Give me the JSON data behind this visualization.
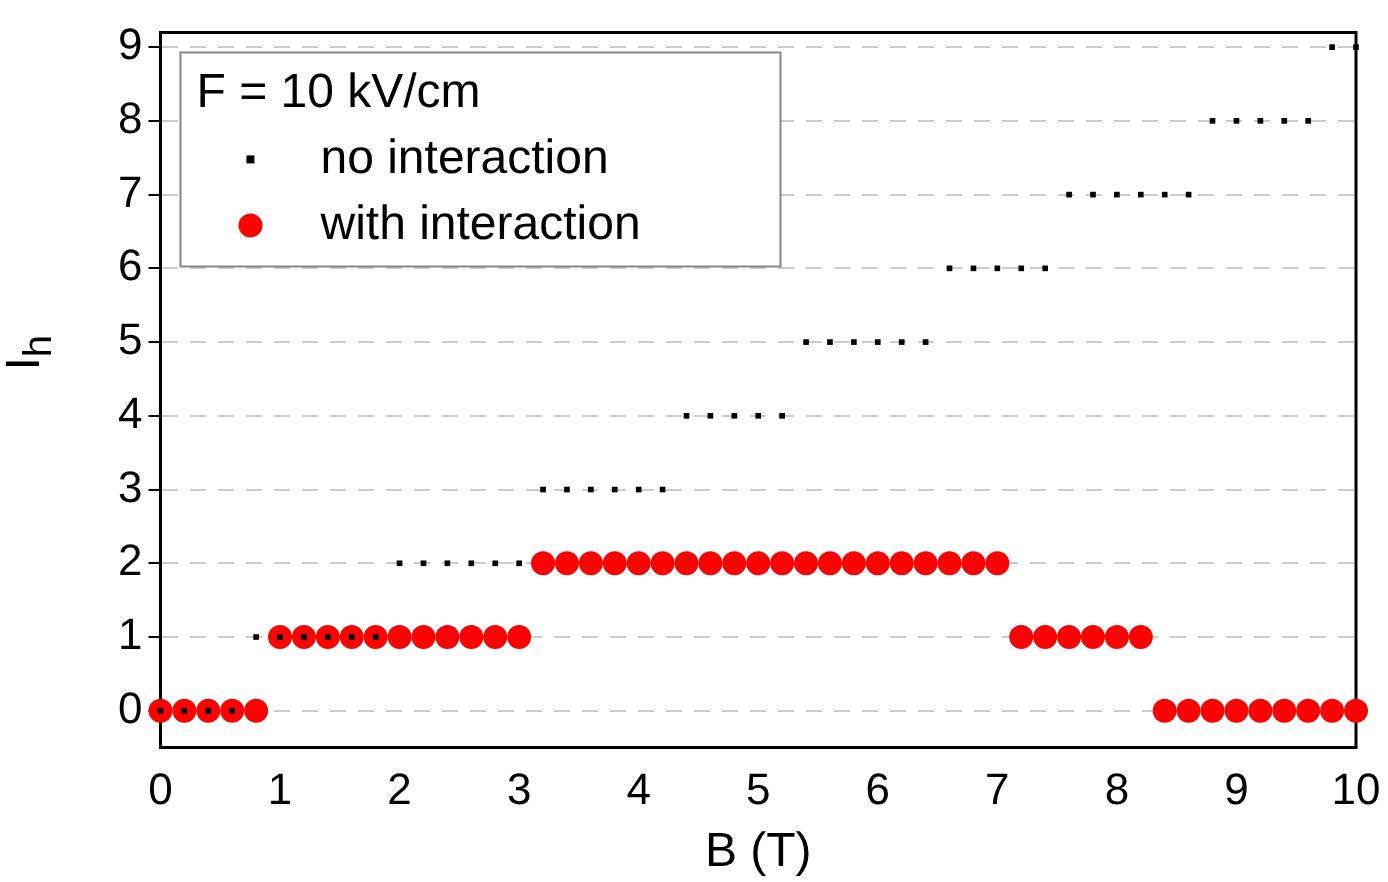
{
  "chart_data": {
    "type": "scatter",
    "xlabel": "B (T)",
    "ylabel": "I$_{h}$",
    "legend_title": "F = 10 kV/cm",
    "legend": "top left",
    "grid": "y",
    "xlim": [
      0,
      10
    ],
    "xticks": [
      0,
      1,
      2,
      3,
      4,
      5,
      6,
      7,
      8,
      9,
      10
    ],
    "ylim": [
      -0.5,
      9.2
    ],
    "yticks": [
      0,
      1,
      2,
      3,
      4,
      5,
      6,
      7,
      8,
      9
    ],
    "series": [
      {
        "name": "with interaction",
        "color": "#ff0000",
        "marker": "circle",
        "x": [
          0,
          0.2,
          0.4,
          0.6,
          0.8,
          1.0,
          1.2,
          1.4,
          1.6,
          1.8,
          2.0,
          2.2,
          2.4,
          2.6,
          2.8,
          3.0,
          3.2,
          3.4,
          3.6,
          3.8,
          4.0,
          4.2,
          4.4,
          4.6,
          4.8,
          5.0,
          5.2,
          5.4,
          5.6,
          5.8,
          6.0,
          6.2,
          6.4,
          6.6,
          6.8,
          7.0,
          7.2,
          7.4,
          7.6,
          7.8,
          8.0,
          8.2,
          8.4,
          8.6,
          8.8,
          9.0,
          9.2,
          9.4,
          9.6,
          9.8,
          10.0
        ],
        "values": [
          0,
          0,
          0,
          0,
          0,
          1,
          1,
          1,
          1,
          1,
          1,
          1,
          1,
          1,
          1,
          1,
          2,
          2,
          2,
          2,
          2,
          2,
          2,
          2,
          2,
          2,
          2,
          2,
          2,
          2,
          2,
          2,
          2,
          2,
          2,
          2,
          1,
          1,
          1,
          1,
          1,
          1,
          0,
          0,
          0,
          0,
          0,
          0,
          0,
          0,
          0
        ]
      },
      {
        "name": "no interaction",
        "color": "#000000",
        "marker": "square",
        "x": [
          0,
          0.2,
          0.4,
          0.6,
          0.8,
          1.0,
          1.2,
          1.4,
          1.6,
          1.8,
          2.0,
          2.2,
          2.4,
          2.6,
          2.8,
          3.0,
          3.2,
          3.4,
          3.6,
          3.8,
          4.0,
          4.2,
          4.4,
          4.6,
          4.8,
          5.0,
          5.2,
          5.4,
          5.6,
          5.8,
          6.0,
          6.2,
          6.4,
          6.6,
          6.8,
          7.0,
          7.2,
          7.4,
          7.6,
          7.8,
          8.0,
          8.2,
          8.4,
          8.6,
          8.8,
          9.0,
          9.2,
          9.4,
          9.6,
          9.8,
          10.0
        ],
        "values": [
          0,
          0,
          0,
          0,
          1,
          1,
          1,
          1,
          1,
          1,
          2,
          2,
          2,
          2,
          2,
          2,
          3,
          3,
          3,
          3,
          3,
          3,
          4,
          4,
          4,
          4,
          4,
          5,
          5,
          5,
          5,
          5,
          5,
          6,
          6,
          6,
          6,
          6,
          7,
          7,
          7,
          7,
          7,
          7,
          8,
          8,
          8,
          8,
          8,
          9,
          9
        ]
      }
    ]
  }
}
